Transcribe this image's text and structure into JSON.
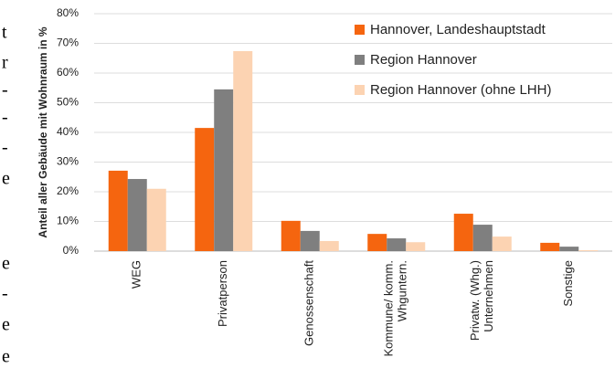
{
  "left_margin_text": [
    "t",
    "r",
    "-",
    "-",
    "-",
    "e",
    "e",
    "-",
    "e",
    "e"
  ],
  "chart_data": {
    "type": "bar",
    "y_axis_label": "Anteil aller Gebäude mit Wohnraum in %",
    "categories": [
      "WEG",
      "Privatperson",
      "Genossenschaft",
      "Kommune/ komm.\nWhguntern.",
      "Privatw. (Whg.)\nUnternehmen",
      "Sonstige"
    ],
    "series": [
      {
        "name": "Hannover, Landeshauptstadt",
        "color": "#f5650f",
        "values": [
          27.1,
          41.5,
          10.2,
          5.8,
          12.6,
          2.8
        ]
      },
      {
        "name": "Region Hannover",
        "color": "#7f7f7f",
        "values": [
          24.3,
          54.5,
          6.8,
          4.3,
          8.9,
          1.5
        ]
      },
      {
        "name": "Region Hannover (ohne LHH)",
        "color": "#fcd3b2",
        "values": [
          21,
          67.4,
          3.4,
          3,
          4.9,
          0.3
        ]
      }
    ],
    "ylim": [
      0,
      80
    ],
    "yticks": [
      {
        "value": 0,
        "label": "0%"
      },
      {
        "value": 10,
        "label": "10%"
      },
      {
        "value": 20,
        "label": "20%"
      },
      {
        "value": 30,
        "label": "30%"
      },
      {
        "value": 40,
        "label": "40%"
      },
      {
        "value": 50,
        "label": "50%"
      },
      {
        "value": 60,
        "label": "60%"
      },
      {
        "value": 70,
        "label": "70%"
      },
      {
        "value": 80,
        "label": "80%"
      }
    ],
    "grid": true,
    "legend": "upper right"
  }
}
